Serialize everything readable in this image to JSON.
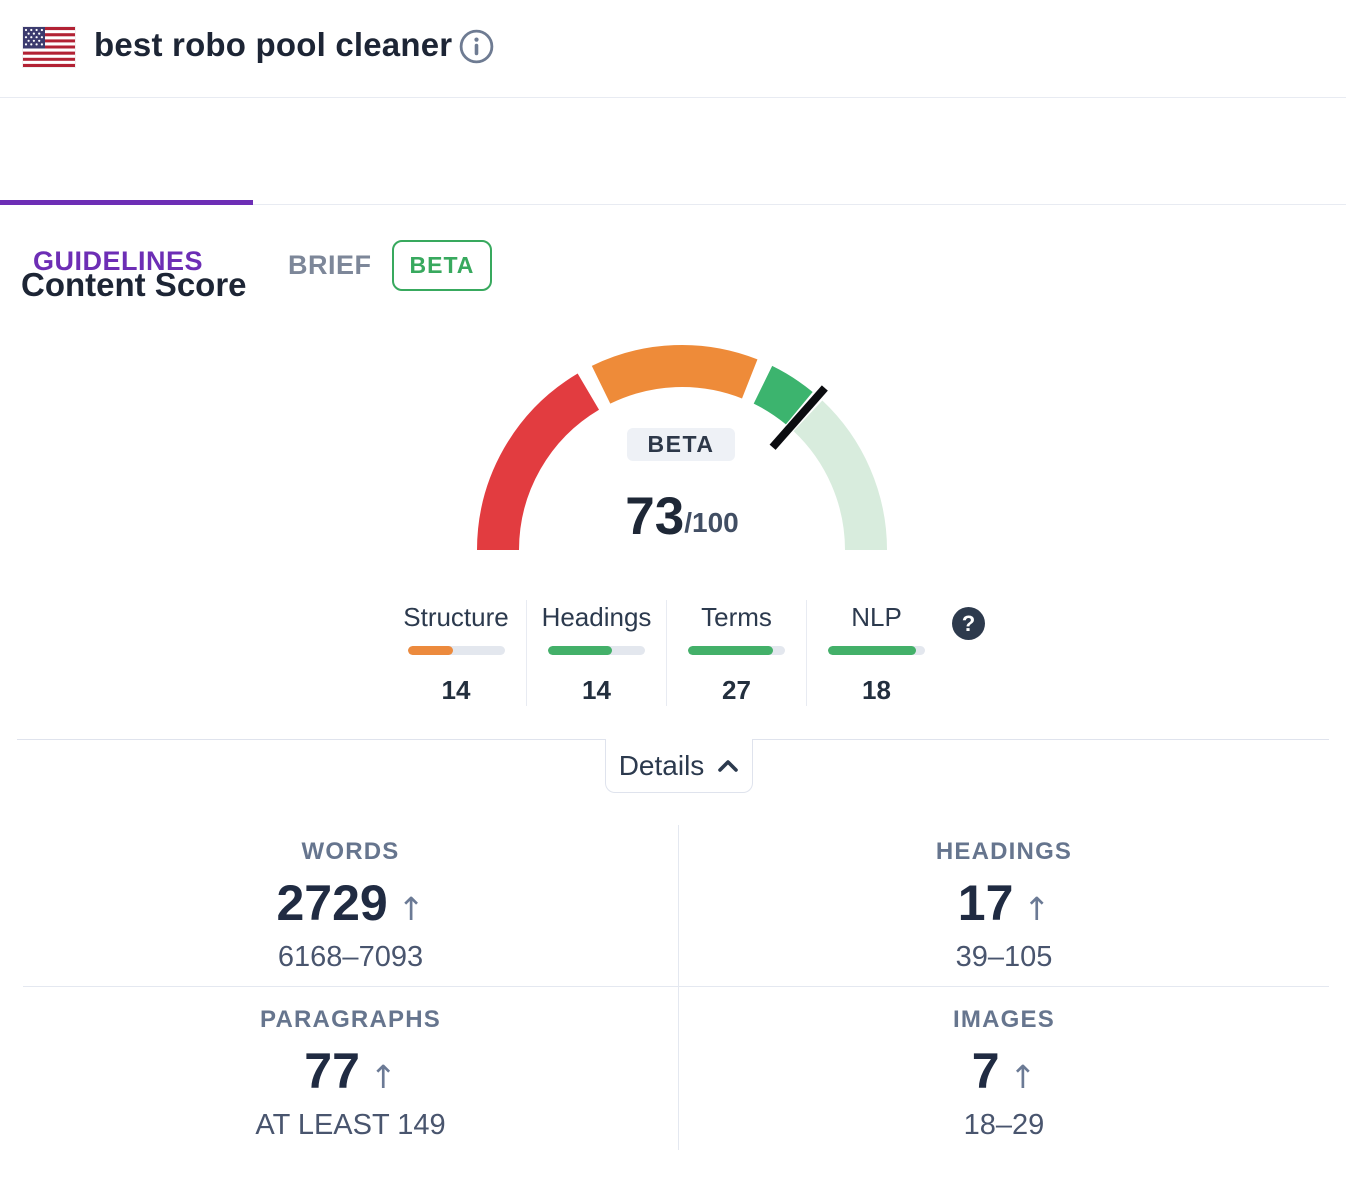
{
  "header": {
    "keyword": "best robo pool cleaner"
  },
  "tabs": {
    "guidelines": "GUIDELINES",
    "brief": "BRIEF",
    "brief_badge": "BETA"
  },
  "content_score": {
    "title": "Content Score",
    "beta_label": "BETA",
    "score": "73",
    "score_max": "/100",
    "help_icon": "?",
    "metrics": [
      {
        "label": "Structure",
        "value": "14",
        "fill_pct": 47,
        "color": "#ec8a3d"
      },
      {
        "label": "Headings",
        "value": "14",
        "fill_pct": 66,
        "color": "#43b069"
      },
      {
        "label": "Terms",
        "value": "27",
        "fill_pct": 88,
        "color": "#43b069"
      },
      {
        "label": "NLP",
        "value": "18",
        "fill_pct": 91,
        "color": "#43b069"
      }
    ]
  },
  "details": {
    "label": "Details"
  },
  "stats": [
    {
      "label": "WORDS",
      "value": "2729",
      "arrow": "↑",
      "range": "6168–7093"
    },
    {
      "label": "HEADINGS",
      "value": "17",
      "arrow": "↑",
      "range": "39–105"
    },
    {
      "label": "PARAGRAPHS",
      "value": "77",
      "arrow": "↑",
      "range": "AT LEAST 149"
    },
    {
      "label": "IMAGES",
      "value": "7",
      "arrow": "↑",
      "range": "18–29"
    }
  ],
  "chart_data": {
    "type": "gauge",
    "title": "Content Score",
    "score": 73,
    "max": 100,
    "needle_color": "#0b0c10",
    "segments": [
      {
        "from": 0,
        "to": 33,
        "color": "#e23c40",
        "meaning": "low"
      },
      {
        "from": 35.5,
        "to": 62,
        "color": "#ee8b39",
        "meaning": "medium"
      },
      {
        "from": 64.5,
        "to": 72,
        "color": "#3cb46e",
        "meaning": "achieved-good"
      },
      {
        "from": 74,
        "to": 100,
        "color": "#d8ecdd",
        "meaning": "remaining-good"
      }
    ],
    "sub_metrics": {
      "Structure": 14,
      "Headings": 14,
      "Terms": 27,
      "NLP": 18
    }
  }
}
